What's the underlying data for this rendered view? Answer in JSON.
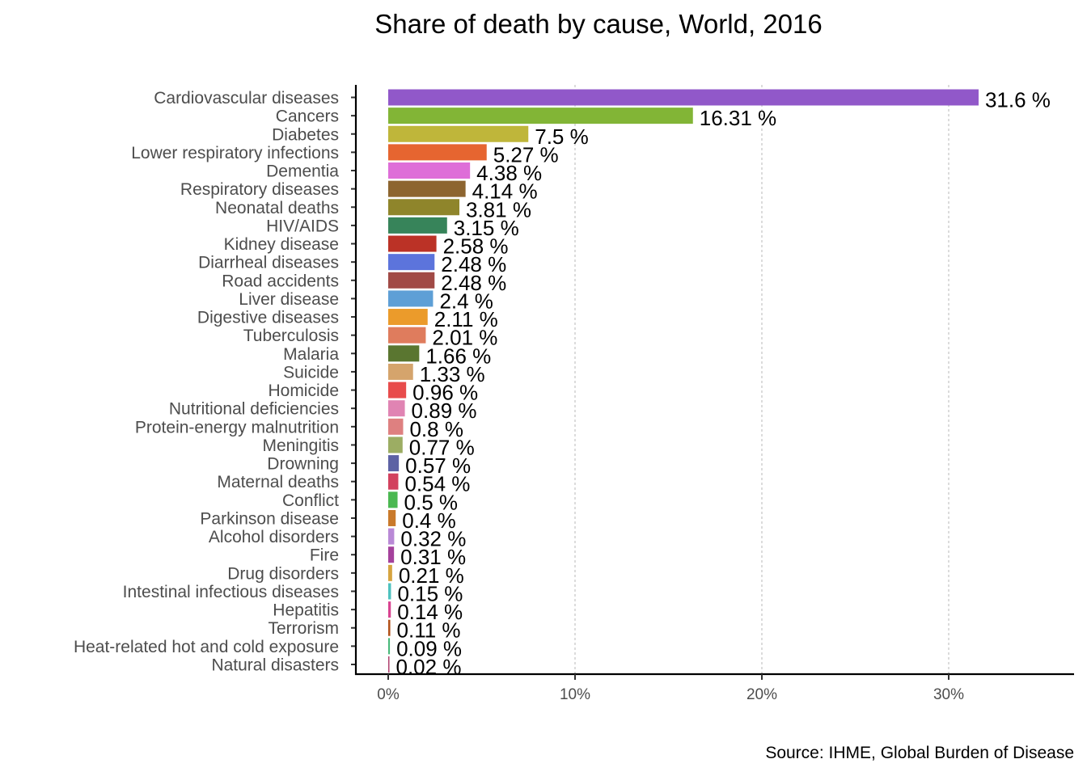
{
  "chart_data": {
    "type": "bar",
    "orientation": "horizontal",
    "title": "Share of death by cause, World, 2016",
    "caption": "Source: IHME, Global Burden of Disease",
    "xlabel": "",
    "ylabel": "",
    "xlim": [
      0,
      36
    ],
    "x_ticks": [
      0,
      10,
      20,
      30
    ],
    "x_tick_labels": [
      "0%",
      "10%",
      "20%",
      "30%"
    ],
    "grid": "vertical dotted",
    "value_suffix": " %",
    "categories": [
      "Cardiovascular diseases",
      "Cancers",
      "Diabetes",
      "Lower respiratory infections",
      "Dementia",
      "Respiratory diseases",
      "Neonatal deaths",
      "HIV/AIDS",
      "Kidney disease",
      "Diarrheal diseases",
      "Road accidents",
      "Liver disease",
      "Digestive diseases",
      "Tuberculosis",
      "Malaria",
      "Suicide",
      "Homicide",
      "Nutritional deficiencies",
      "Protein-energy malnutrition",
      "Meningitis",
      "Drowning",
      "Maternal deaths",
      "Conflict",
      "Parkinson disease",
      "Alcohol disorders",
      "Fire",
      "Drug disorders",
      "Intestinal infectious diseases",
      "Hepatitis",
      "Terrorism",
      "Heat-related hot and cold exposure",
      "Natural disasters"
    ],
    "values": [
      31.6,
      16.31,
      7.5,
      5.27,
      4.38,
      4.14,
      3.81,
      3.15,
      2.58,
      2.48,
      2.48,
      2.4,
      2.11,
      2.01,
      1.66,
      1.33,
      0.96,
      0.89,
      0.8,
      0.77,
      0.57,
      0.54,
      0.5,
      0.4,
      0.32,
      0.31,
      0.21,
      0.15,
      0.14,
      0.11,
      0.09,
      0.02
    ],
    "value_labels": [
      "31.6 %",
      "16.31 %",
      "7.5 %",
      "5.27 %",
      "4.38 %",
      "4.14 %",
      "3.81 %",
      "3.15 %",
      "2.58 %",
      "2.48 %",
      "2.48 %",
      "2.4 %",
      "2.11 %",
      "2.01 %",
      "1.66 %",
      "1.33 %",
      "0.96 %",
      "0.89 %",
      "0.8 %",
      "0.77 %",
      "0.57 %",
      "0.54 %",
      "0.5 %",
      "0.4 %",
      "0.32 %",
      "0.31 %",
      "0.21 %",
      "0.15 %",
      "0.14 %",
      "0.11 %",
      "0.09 %",
      "0.02 %"
    ],
    "colors": [
      "#9158c9",
      "#82b536",
      "#bfb63a",
      "#e66530",
      "#de6ed8",
      "#8d6530",
      "#8f852b",
      "#37845a",
      "#bb3226",
      "#5c74dc",
      "#a14a46",
      "#5e9fd6",
      "#eb9b2b",
      "#df7c5d",
      "#5a7630",
      "#d5a46c",
      "#e84c4c",
      "#e084b3",
      "#de8080",
      "#9cad63",
      "#5d62a4",
      "#d2415e",
      "#4bb851",
      "#c97a2b",
      "#b989d6",
      "#a4419c",
      "#d6a440",
      "#4ec2bf",
      "#d94491",
      "#b3521a",
      "#49b97a",
      "#b0406e"
    ]
  }
}
